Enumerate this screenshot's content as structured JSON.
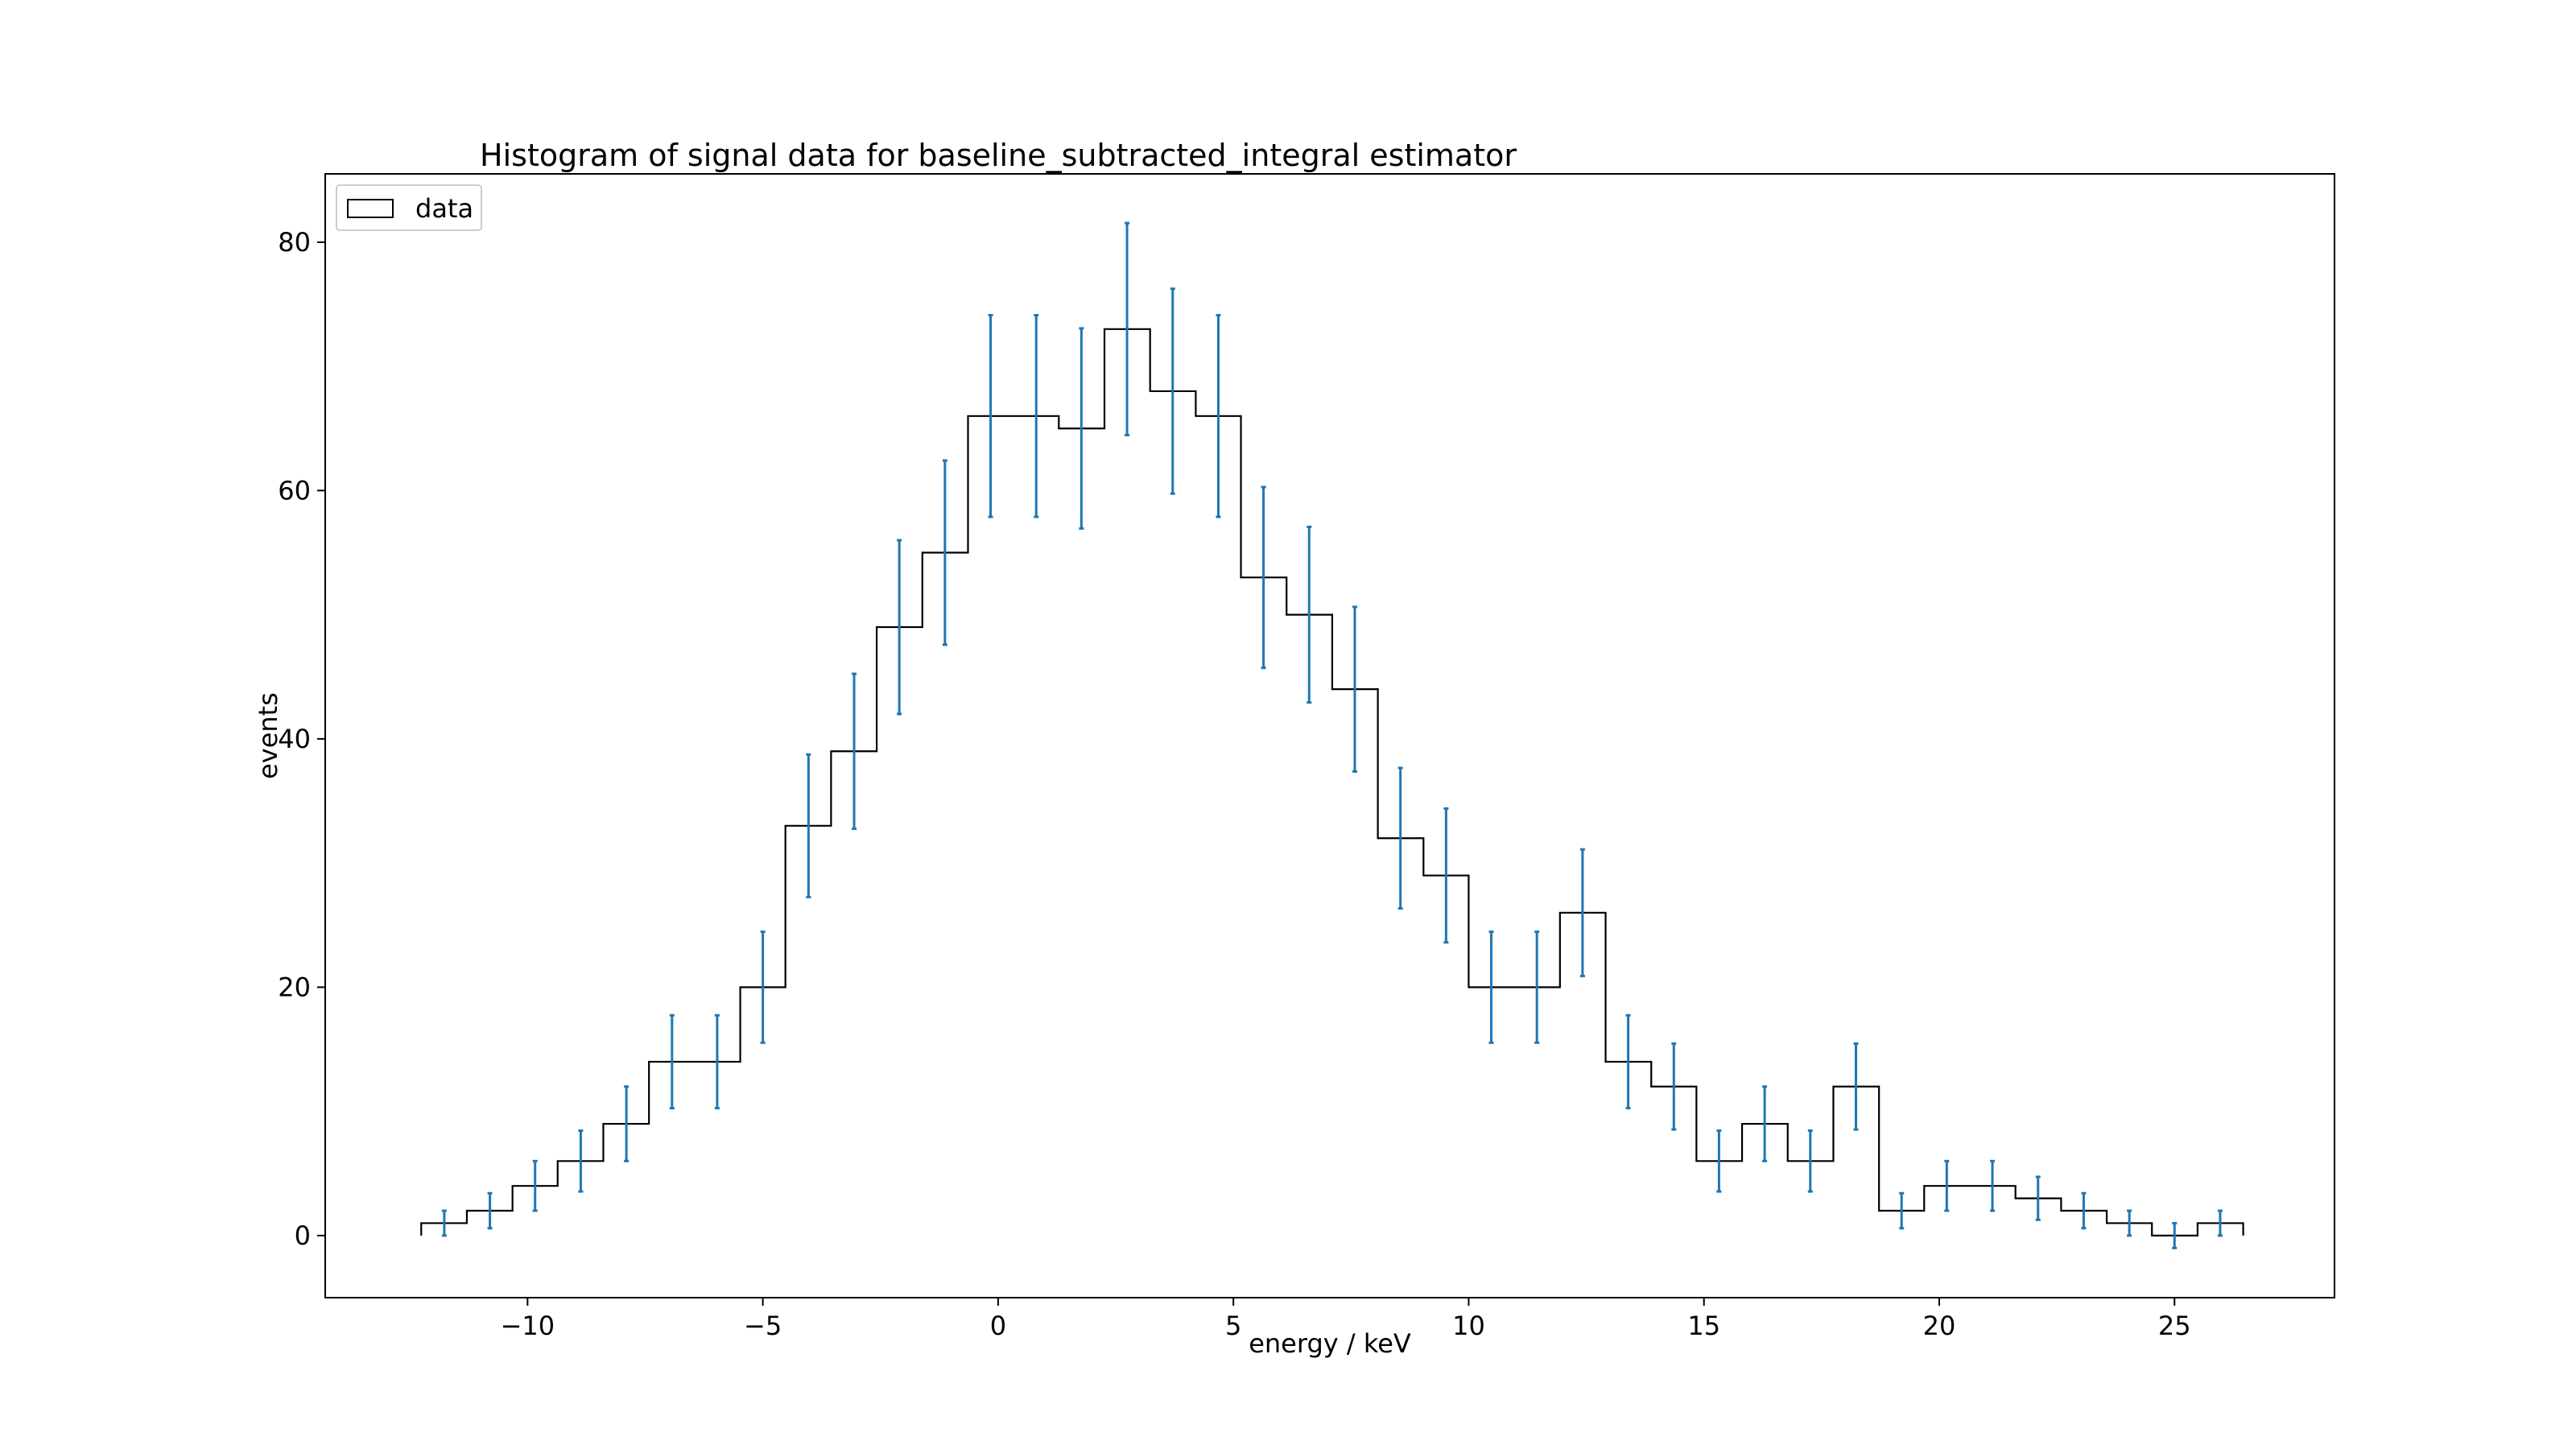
{
  "chart_data": {
    "type": "histogram",
    "title": "Histogram of signal data for baseline_subtracted_integral estimator",
    "xlabel": "energy / keV",
    "ylabel": "events",
    "xlim": [
      -14.3,
      28.4
    ],
    "ylim": [
      -5,
      85.5
    ],
    "xticks": [
      -10,
      -5,
      0,
      5,
      10,
      15,
      20,
      25
    ],
    "xtick_labels": [
      "−10",
      "−5",
      "0",
      "5",
      "10",
      "15",
      "20",
      "25"
    ],
    "yticks": [
      0,
      20,
      40,
      60,
      80
    ],
    "ytick_labels": [
      "0",
      "20",
      "40",
      "60",
      "80"
    ],
    "grid": false,
    "legend": {
      "position": "top-left",
      "entries": [
        {
          "label": "data",
          "style": "step-outline",
          "color": "#000000"
        }
      ]
    },
    "series": [
      {
        "name": "data",
        "style": "step",
        "color": "#000000",
        "bin_edges": [
          -12.26,
          -11.29,
          -10.32,
          -9.36,
          -8.39,
          -7.42,
          -6.45,
          -5.48,
          -4.52,
          -3.55,
          -2.58,
          -1.61,
          -0.64,
          0.32,
          1.29,
          2.26,
          3.23,
          4.2,
          5.16,
          6.13,
          7.1,
          8.07,
          9.04,
          10.0,
          10.97,
          11.94,
          12.91,
          13.88,
          14.84,
          15.81,
          16.78,
          17.75,
          18.72,
          19.68,
          20.65,
          21.62,
          22.59,
          23.56,
          24.52,
          25.49,
          26.46
        ],
        "counts": [
          1,
          2,
          4,
          6,
          9,
          14,
          14,
          20,
          33,
          39,
          49,
          55,
          66,
          66,
          65,
          73,
          68,
          66,
          53,
          50,
          44,
          32,
          29,
          20,
          20,
          26,
          14,
          12,
          6,
          9,
          6,
          12,
          2,
          4,
          4,
          3,
          2,
          1,
          0,
          1
        ]
      }
    ],
    "errorbars": {
      "color": "#1f77b4",
      "x": [
        -11.77,
        -10.8,
        -9.84,
        -8.87,
        -7.9,
        -6.93,
        -5.97,
        -5.0,
        -4.03,
        -3.06,
        -2.1,
        -1.13,
        -0.16,
        0.81,
        1.77,
        2.74,
        3.71,
        4.68,
        5.64,
        6.61,
        7.58,
        8.55,
        9.52,
        10.48,
        11.45,
        12.42,
        13.39,
        14.36,
        15.32,
        16.29,
        17.26,
        18.23,
        19.2,
        20.16,
        21.13,
        22.1,
        23.07,
        24.04,
        25.0,
        25.97
      ],
      "y": [
        1,
        2,
        4,
        6,
        9,
        14,
        14,
        20,
        33,
        39,
        49,
        55,
        66,
        66,
        65,
        73,
        68,
        66,
        53,
        50,
        44,
        32,
        29,
        20,
        20,
        26,
        14,
        12,
        6,
        9,
        6,
        12,
        2,
        4,
        4,
        3,
        2,
        1,
        0,
        1
      ],
      "err": [
        1,
        1.41,
        2,
        2.45,
        3,
        3.74,
        3.74,
        4.47,
        5.74,
        6.24,
        7,
        7.42,
        8.12,
        8.12,
        8.06,
        8.54,
        8.25,
        8.12,
        7.28,
        7.07,
        6.63,
        5.66,
        5.39,
        4.47,
        4.47,
        5.1,
        3.74,
        3.46,
        2.45,
        3,
        2.45,
        3.46,
        1.41,
        2,
        2,
        1.73,
        1.41,
        1,
        1,
        1
      ]
    }
  }
}
